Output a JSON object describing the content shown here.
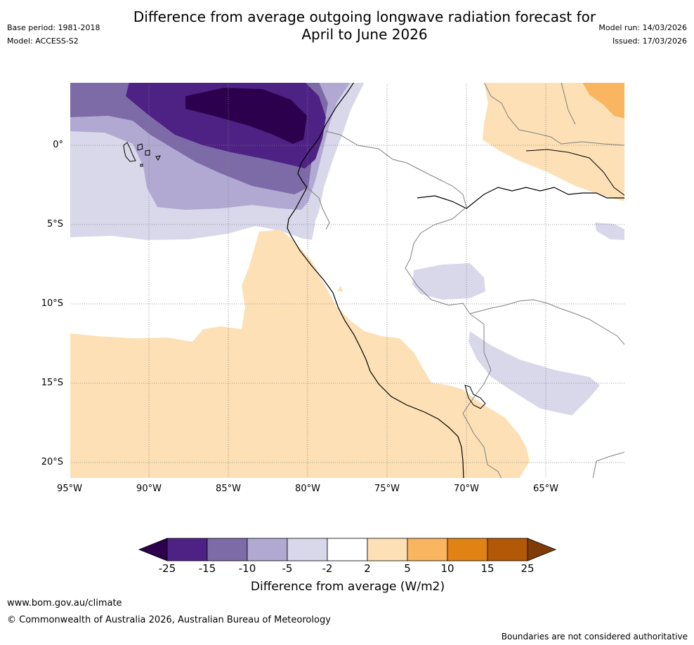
{
  "header": {
    "title_line1": "Difference from average outgoing longwave radiation forecast for",
    "title_line2": "April to June 2026",
    "base_period": "Base period: 1981-2018",
    "model": "Model: ACCESS-S2",
    "model_run": "Model run: 14/03/2026",
    "issued": "Issued: 17/03/2026"
  },
  "map": {
    "latitude_labels": [
      "0°",
      "5°S",
      "10°S",
      "15°S",
      "20°S"
    ],
    "longitude_labels": [
      "95°W",
      "90°W",
      "85°W",
      "80°W",
      "75°W",
      "70°W",
      "65°W"
    ],
    "region": "Tropical eastern Pacific and western South America"
  },
  "colorbar": {
    "ticks": [
      "-25",
      "-15",
      "-10",
      "-5",
      "-2",
      "2",
      "5",
      "10",
      "15",
      "25"
    ],
    "colors": [
      "#2c004d",
      "#4e2284",
      "#7d6ba8",
      "#b1a9d1",
      "#d8d8ea",
      "#ffffff",
      "#fde0b5",
      "#f9b55f",
      "#e08214",
      "#b35806",
      "#7f3b08"
    ],
    "label": "Difference from average (W/m2)"
  },
  "footer": {
    "website": "www.bom.gov.au/climate",
    "copyright": "© Commonwealth of Australia 2026, Australian Bureau of Meteorology",
    "disclaimer": "Boundaries are not considered authoritative"
  }
}
